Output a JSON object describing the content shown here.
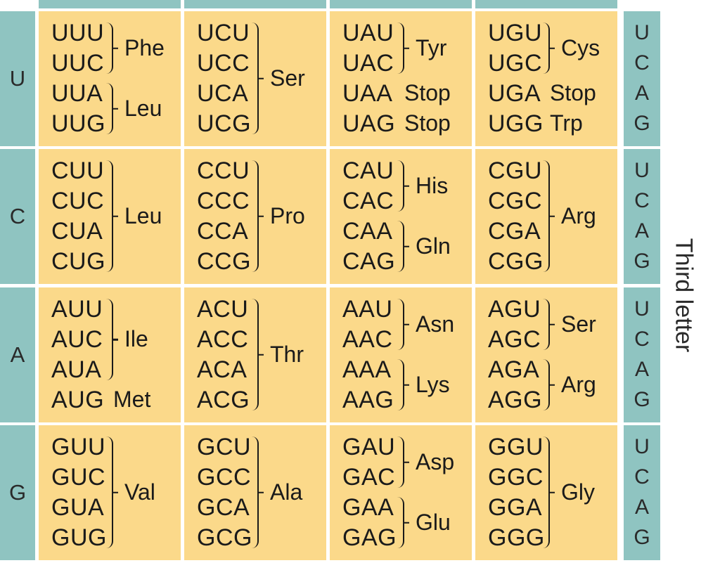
{
  "axis": {
    "third_letter_label": "Third letter"
  },
  "bases": [
    "U",
    "C",
    "A",
    "G"
  ],
  "rows": [
    {
      "first": "U",
      "third": [
        "U",
        "C",
        "A",
        "G"
      ],
      "cells": [
        {
          "codons": [
            "UUU",
            "UUC",
            "UUA",
            "UUG"
          ],
          "groups": [
            {
              "label": "Phe",
              "from": 0,
              "to": 1,
              "brace": true
            },
            {
              "label": "Leu",
              "from": 2,
              "to": 3,
              "brace": true
            }
          ]
        },
        {
          "codons": [
            "UCU",
            "UCC",
            "UCA",
            "UCG"
          ],
          "groups": [
            {
              "label": "Ser",
              "from": 0,
              "to": 3,
              "brace": true
            }
          ]
        },
        {
          "codons": [
            "UAU",
            "UAC",
            "UAA",
            "UAG"
          ],
          "groups": [
            {
              "label": "Tyr",
              "from": 0,
              "to": 1,
              "brace": true
            },
            {
              "label": "Stop",
              "from": 2,
              "to": 2,
              "brace": false
            },
            {
              "label": "Stop",
              "from": 3,
              "to": 3,
              "brace": false
            }
          ]
        },
        {
          "codons": [
            "UGU",
            "UGC",
            "UGA",
            "UGG"
          ],
          "groups": [
            {
              "label": "Cys",
              "from": 0,
              "to": 1,
              "brace": true
            },
            {
              "label": "Stop",
              "from": 2,
              "to": 2,
              "brace": false
            },
            {
              "label": "Trp",
              "from": 3,
              "to": 3,
              "brace": false
            }
          ]
        }
      ]
    },
    {
      "first": "C",
      "third": [
        "U",
        "C",
        "A",
        "G"
      ],
      "cells": [
        {
          "codons": [
            "CUU",
            "CUC",
            "CUA",
            "CUG"
          ],
          "groups": [
            {
              "label": "Leu",
              "from": 0,
              "to": 3,
              "brace": true
            }
          ]
        },
        {
          "codons": [
            "CCU",
            "CCC",
            "CCA",
            "CCG"
          ],
          "groups": [
            {
              "label": "Pro",
              "from": 0,
              "to": 3,
              "brace": true
            }
          ]
        },
        {
          "codons": [
            "CAU",
            "CAC",
            "CAA",
            "CAG"
          ],
          "groups": [
            {
              "label": "His",
              "from": 0,
              "to": 1,
              "brace": true
            },
            {
              "label": "Gln",
              "from": 2,
              "to": 3,
              "brace": true
            }
          ]
        },
        {
          "codons": [
            "CGU",
            "CGC",
            "CGA",
            "CGG"
          ],
          "groups": [
            {
              "label": "Arg",
              "from": 0,
              "to": 3,
              "brace": true
            }
          ]
        }
      ]
    },
    {
      "first": "A",
      "third": [
        "U",
        "C",
        "A",
        "G"
      ],
      "cells": [
        {
          "codons": [
            "AUU",
            "AUC",
            "AUA",
            "AUG"
          ],
          "groups": [
            {
              "label": "Ile",
              "from": 0,
              "to": 2,
              "brace": true
            },
            {
              "label": "Met",
              "from": 3,
              "to": 3,
              "brace": false
            }
          ]
        },
        {
          "codons": [
            "ACU",
            "ACC",
            "ACA",
            "ACG"
          ],
          "groups": [
            {
              "label": "Thr",
              "from": 0,
              "to": 3,
              "brace": true
            }
          ]
        },
        {
          "codons": [
            "AAU",
            "AAC",
            "AAA",
            "AAG"
          ],
          "groups": [
            {
              "label": "Asn",
              "from": 0,
              "to": 1,
              "brace": true
            },
            {
              "label": "Lys",
              "from": 2,
              "to": 3,
              "brace": true
            }
          ]
        },
        {
          "codons": [
            "AGU",
            "AGC",
            "AGA",
            "AGG"
          ],
          "groups": [
            {
              "label": "Ser",
              "from": 0,
              "to": 1,
              "brace": true
            },
            {
              "label": "Arg",
              "from": 2,
              "to": 3,
              "brace": true
            }
          ]
        }
      ]
    },
    {
      "first": "G",
      "third": [
        "U",
        "C",
        "A",
        "G"
      ],
      "cells": [
        {
          "codons": [
            "GUU",
            "GUC",
            "GUA",
            "GUG"
          ],
          "groups": [
            {
              "label": "Val",
              "from": 0,
              "to": 3,
              "brace": true
            }
          ]
        },
        {
          "codons": [
            "GCU",
            "GCC",
            "GCA",
            "GCG"
          ],
          "groups": [
            {
              "label": "Ala",
              "from": 0,
              "to": 3,
              "brace": true
            }
          ]
        },
        {
          "codons": [
            "GAU",
            "GAC",
            "GAA",
            "GAG"
          ],
          "groups": [
            {
              "label": "Asp",
              "from": 0,
              "to": 1,
              "brace": true
            },
            {
              "label": "Glu",
              "from": 2,
              "to": 3,
              "brace": true
            }
          ]
        },
        {
          "codons": [
            "GGU",
            "GGC",
            "GGA",
            "GGG"
          ],
          "groups": [
            {
              "label": "Gly",
              "from": 0,
              "to": 3,
              "brace": true
            }
          ]
        }
      ]
    }
  ],
  "colors": {
    "header_teal": "#8fc4c1",
    "cell_yellow": "#fbd98a",
    "text": "#1a1a1a"
  }
}
